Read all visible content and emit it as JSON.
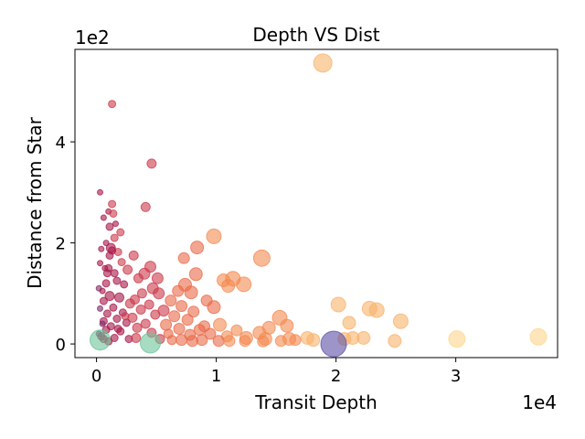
{
  "chart_data": {
    "type": "scatter",
    "title": "Depth VS Dist",
    "xlabel": "Transit Depth",
    "ylabel": "Distance from Star",
    "x_offset_label": "1e4",
    "y_offset_label": "1e2",
    "xlim": [
      -1800,
      38500
    ],
    "ylim": [
      -27,
      583
    ],
    "x_ticks": [
      0,
      10000,
      20000,
      30000
    ],
    "x_tick_labels": [
      "0",
      "1",
      "2",
      "3"
    ],
    "y_ticks": [
      0,
      200,
      400
    ],
    "y_tick_labels": [
      "0",
      "2",
      "4"
    ],
    "grid": false,
    "legend": "none",
    "colormap": [
      "#7d2a6b",
      "#a81848",
      "#cc3a4b",
      "#ea6a48",
      "#f48a50",
      "#f9b26b",
      "#fdd58c",
      "#fee9a6"
    ],
    "special_colors": {
      "green": "#6cc39a",
      "purple": "#5b4fa5"
    },
    "points": [
      {
        "x": 18900,
        "y": 556,
        "s": 10,
        "c": "#f9b26b"
      },
      {
        "x": 1300,
        "y": 475,
        "s": 4,
        "c": "#cc3a4b"
      },
      {
        "x": 4600,
        "y": 357,
        "s": 5,
        "c": "#cc3a4b"
      },
      {
        "x": 300,
        "y": 300,
        "s": 3,
        "c": "#a81848"
      },
      {
        "x": 1300,
        "y": 277,
        "s": 4,
        "c": "#cc3a4b"
      },
      {
        "x": 4100,
        "y": 271,
        "s": 5,
        "c": "#cc3a4b"
      },
      {
        "x": 1000,
        "y": 262,
        "s": 3,
        "c": "#a81848"
      },
      {
        "x": 1400,
        "y": 258,
        "s": 4,
        "c": "#cc3a4b"
      },
      {
        "x": 600,
        "y": 250,
        "s": 3,
        "c": "#a81848"
      },
      {
        "x": 1600,
        "y": 238,
        "s": 3,
        "c": "#a81848"
      },
      {
        "x": 1100,
        "y": 232,
        "s": 4,
        "c": "#a81848"
      },
      {
        "x": 2000,
        "y": 221,
        "s": 4,
        "c": "#cc3a4b"
      },
      {
        "x": 9800,
        "y": 213,
        "s": 8,
        "c": "#f48a50"
      },
      {
        "x": 1500,
        "y": 210,
        "s": 4,
        "c": "#cc3a4b"
      },
      {
        "x": 800,
        "y": 200,
        "s": 3,
        "c": "#a81848"
      },
      {
        "x": 1200,
        "y": 190,
        "s": 5,
        "c": "#a81848"
      },
      {
        "x": 8400,
        "y": 191,
        "s": 7,
        "c": "#ea6a48"
      },
      {
        "x": 1800,
        "y": 182,
        "s": 4,
        "c": "#cc3a4b"
      },
      {
        "x": 3100,
        "y": 175,
        "s": 5,
        "c": "#cc3a4b"
      },
      {
        "x": 7300,
        "y": 170,
        "s": 6,
        "c": "#ea6a48"
      },
      {
        "x": 13800,
        "y": 170,
        "s": 9,
        "c": "#f48a50"
      },
      {
        "x": 400,
        "y": 188,
        "s": 3,
        "c": "#a81848"
      },
      {
        "x": 2100,
        "y": 162,
        "s": 4,
        "c": "#cc3a4b"
      },
      {
        "x": 4500,
        "y": 153,
        "s": 6,
        "c": "#cc3a4b"
      },
      {
        "x": 1000,
        "y": 150,
        "s": 4,
        "c": "#a81848"
      },
      {
        "x": 2600,
        "y": 147,
        "s": 5,
        "c": "#cc3a4b"
      },
      {
        "x": 8300,
        "y": 138,
        "s": 7,
        "c": "#ea6a48"
      },
      {
        "x": 1500,
        "y": 140,
        "s": 4,
        "c": "#a81848"
      },
      {
        "x": 4000,
        "y": 139,
        "s": 6,
        "c": "#cc3a4b"
      },
      {
        "x": 3500,
        "y": 130,
        "s": 5,
        "c": "#cc3a4b"
      },
      {
        "x": 5100,
        "y": 130,
        "s": 6,
        "c": "#cc3a4b"
      },
      {
        "x": 10600,
        "y": 126,
        "s": 7,
        "c": "#f48a50"
      },
      {
        "x": 11400,
        "y": 129,
        "s": 8,
        "c": "#f48a50"
      },
      {
        "x": 12300,
        "y": 118,
        "s": 8,
        "c": "#f48a50"
      },
      {
        "x": 7400,
        "y": 117,
        "s": 7,
        "c": "#ea6a48"
      },
      {
        "x": 11000,
        "y": 115,
        "s": 7,
        "c": "#f48a50"
      },
      {
        "x": 800,
        "y": 120,
        "s": 4,
        "c": "#a81848"
      },
      {
        "x": 2300,
        "y": 118,
        "s": 4,
        "c": "#a81848"
      },
      {
        "x": 4700,
        "y": 110,
        "s": 6,
        "c": "#cc3a4b"
      },
      {
        "x": 6800,
        "y": 105,
        "s": 6,
        "c": "#ea6a48"
      },
      {
        "x": 7900,
        "y": 102,
        "s": 7,
        "c": "#ea6a48"
      },
      {
        "x": 5200,
        "y": 100,
        "s": 6,
        "c": "#cc3a4b"
      },
      {
        "x": 15300,
        "y": 52,
        "s": 8,
        "c": "#f48a50"
      },
      {
        "x": 20200,
        "y": 78,
        "s": 8,
        "c": "#f9b26b"
      },
      {
        "x": 22800,
        "y": 70,
        "s": 8,
        "c": "#f9b26b"
      },
      {
        "x": 23400,
        "y": 67,
        "s": 8,
        "c": "#f9b26b"
      },
      {
        "x": 25400,
        "y": 45,
        "s": 8,
        "c": "#f9b26b"
      },
      {
        "x": 21100,
        "y": 42,
        "s": 7,
        "c": "#f9b26b"
      },
      {
        "x": 1100,
        "y": 95,
        "s": 5,
        "c": "#a81848"
      },
      {
        "x": 1900,
        "y": 92,
        "s": 5,
        "c": "#a81848"
      },
      {
        "x": 3200,
        "y": 88,
        "s": 5,
        "c": "#cc3a4b"
      },
      {
        "x": 6200,
        "y": 86,
        "s": 6,
        "c": "#ea6a48"
      },
      {
        "x": 9200,
        "y": 86,
        "s": 6,
        "c": "#ea6a48"
      },
      {
        "x": 600,
        "y": 85,
        "s": 4,
        "c": "#a81848"
      },
      {
        "x": 2800,
        "y": 80,
        "s": 5,
        "c": "#cc3a4b"
      },
      {
        "x": 4400,
        "y": 78,
        "s": 5,
        "c": "#cc3a4b"
      },
      {
        "x": 7100,
        "y": 75,
        "s": 6,
        "c": "#ea6a48"
      },
      {
        "x": 9800,
        "y": 73,
        "s": 7,
        "c": "#ea6a48"
      },
      {
        "x": 1400,
        "y": 72,
        "s": 4,
        "c": "#a81848"
      },
      {
        "x": 3700,
        "y": 68,
        "s": 5,
        "c": "#cc3a4b"
      },
      {
        "x": 5600,
        "y": 66,
        "s": 6,
        "c": "#cc3a4b"
      },
      {
        "x": 8100,
        "y": 64,
        "s": 6,
        "c": "#ea6a48"
      },
      {
        "x": 2200,
        "y": 62,
        "s": 4,
        "c": "#a81848"
      },
      {
        "x": 900,
        "y": 60,
        "s": 4,
        "c": "#a81848"
      },
      {
        "x": 4900,
        "y": 58,
        "s": 5,
        "c": "#cc3a4b"
      },
      {
        "x": 6500,
        "y": 55,
        "s": 6,
        "c": "#ea6a48"
      },
      {
        "x": 3000,
        "y": 52,
        "s": 5,
        "c": "#cc3a4b"
      },
      {
        "x": 1700,
        "y": 50,
        "s": 4,
        "c": "#a81848"
      },
      {
        "x": 7600,
        "y": 48,
        "s": 6,
        "c": "#ea6a48"
      },
      {
        "x": 10300,
        "y": 38,
        "s": 7,
        "c": "#f48a50"
      },
      {
        "x": 15900,
        "y": 36,
        "s": 7,
        "c": "#f48a50"
      },
      {
        "x": 14400,
        "y": 32,
        "s": 7,
        "c": "#f48a50"
      },
      {
        "x": 600,
        "y": 45,
        "s": 4,
        "c": "#a81848"
      },
      {
        "x": 2500,
        "y": 42,
        "s": 4,
        "c": "#a81848"
      },
      {
        "x": 4100,
        "y": 40,
        "s": 5,
        "c": "#cc3a4b"
      },
      {
        "x": 5800,
        "y": 38,
        "s": 6,
        "c": "#ea6a48"
      },
      {
        "x": 9000,
        "y": 35,
        "s": 6,
        "c": "#ea6a48"
      },
      {
        "x": 1200,
        "y": 35,
        "s": 4,
        "c": "#a81848"
      },
      {
        "x": 3400,
        "y": 32,
        "s": 5,
        "c": "#cc3a4b"
      },
      {
        "x": 6900,
        "y": 30,
        "s": 6,
        "c": "#ea6a48"
      },
      {
        "x": 8600,
        "y": 28,
        "s": 6,
        "c": "#ea6a48"
      },
      {
        "x": 11700,
        "y": 27,
        "s": 6,
        "c": "#f48a50"
      },
      {
        "x": 13600,
        "y": 22,
        "s": 7,
        "c": "#f48a50"
      },
      {
        "x": 800,
        "y": 28,
        "s": 4,
        "c": "#a81848"
      },
      {
        "x": 2000,
        "y": 25,
        "s": 4,
        "c": "#a81848"
      },
      {
        "x": 4600,
        "y": 22,
        "s": 5,
        "c": "#cc3a4b"
      },
      {
        "x": 6000,
        "y": 20,
        "s": 5,
        "c": "#ea6a48"
      },
      {
        "x": 7800,
        "y": 18,
        "s": 6,
        "c": "#ea6a48"
      },
      {
        "x": 9500,
        "y": 20,
        "s": 6,
        "c": "#ea6a48"
      },
      {
        "x": 10900,
        "y": 15,
        "s": 6,
        "c": "#f48a50"
      },
      {
        "x": 12500,
        "y": 12,
        "s": 7,
        "c": "#f48a50"
      },
      {
        "x": 14100,
        "y": 10,
        "s": 7,
        "c": "#f48a50"
      },
      {
        "x": 16100,
        "y": 10,
        "s": 7,
        "c": "#f48a50"
      },
      {
        "x": 17600,
        "y": 12,
        "s": 7,
        "c": "#f9b26b"
      },
      {
        "x": 18100,
        "y": 8,
        "s": 7,
        "c": "#f9b26b"
      },
      {
        "x": 20700,
        "y": 10,
        "s": 7,
        "c": "#f9b26b"
      },
      {
        "x": 21400,
        "y": 12,
        "s": 7,
        "c": "#f9b26b"
      },
      {
        "x": 22300,
        "y": 12,
        "s": 7,
        "c": "#f9b26b"
      },
      {
        "x": 24900,
        "y": 6,
        "s": 7,
        "c": "#f9b26b"
      },
      {
        "x": 30100,
        "y": 10,
        "s": 9,
        "c": "#fdd58c"
      },
      {
        "x": 36900,
        "y": 14,
        "s": 9,
        "c": "#fdd58c"
      },
      {
        "x": 400,
        "y": 15,
        "s": 4,
        "c": "#a81848"
      },
      {
        "x": 1500,
        "y": 12,
        "s": 4,
        "c": "#a81848"
      },
      {
        "x": 2700,
        "y": 10,
        "s": 4,
        "c": "#a81848"
      },
      {
        "x": 3300,
        "y": 12,
        "s": 5,
        "c": "#cc3a4b"
      },
      {
        "x": 5300,
        "y": 10,
        "s": 5,
        "c": "#cc3a4b"
      },
      {
        "x": 6300,
        "y": 8,
        "s": 5,
        "c": "#ea6a48"
      },
      {
        "x": 7100,
        "y": 8,
        "s": 6,
        "c": "#ea6a48"
      },
      {
        "x": 8000,
        "y": 6,
        "s": 6,
        "c": "#ea6a48"
      },
      {
        "x": 8800,
        "y": 8,
        "s": 6,
        "c": "#ea6a48"
      },
      {
        "x": 10200,
        "y": 6,
        "s": 6,
        "c": "#ea6a48"
      },
      {
        "x": 11100,
        "y": 6,
        "s": 6,
        "c": "#f48a50"
      },
      {
        "x": 12400,
        "y": 6,
        "s": 6,
        "c": "#f48a50"
      },
      {
        "x": 13900,
        "y": 5,
        "s": 6,
        "c": "#f48a50"
      },
      {
        "x": 15400,
        "y": 6,
        "s": 6,
        "c": "#f48a50"
      },
      {
        "x": 16600,
        "y": 8,
        "s": 6,
        "c": "#f48a50"
      },
      {
        "x": 200,
        "y": 110,
        "s": 3,
        "c": "#7d2a6b"
      },
      {
        "x": 500,
        "y": 105,
        "s": 3,
        "c": "#a81848"
      },
      {
        "x": 700,
        "y": 150,
        "s": 3,
        "c": "#a81848"
      },
      {
        "x": 300,
        "y": 160,
        "s": 3,
        "c": "#a81848"
      },
      {
        "x": 900,
        "y": 140,
        "s": 4,
        "c": "#a81848"
      },
      {
        "x": 300,
        "y": 70,
        "s": 3,
        "c": "#7d2a6b"
      },
      {
        "x": 500,
        "y": 40,
        "s": 3,
        "c": "#7d2a6b"
      },
      {
        "x": 200,
        "y": 20,
        "s": 3,
        "c": "#7d2a6b"
      },
      {
        "x": 600,
        "y": 10,
        "s": 4,
        "c": "#a81848"
      },
      {
        "x": 1000,
        "y": 5,
        "s": 4,
        "c": "#a81848"
      },
      {
        "x": 1800,
        "y": 30,
        "s": 4,
        "c": "#a81848"
      },
      {
        "x": 2400,
        "y": 55,
        "s": 4,
        "c": "#cc3a4b"
      },
      {
        "x": 1100,
        "y": 175,
        "s": 4,
        "c": "#a81848"
      },
      {
        "x": 1300,
        "y": 185,
        "s": 4,
        "c": "#a81848"
      },
      {
        "x": 1700,
        "y": 125,
        "s": 4,
        "c": "#a81848"
      },
      {
        "x": 3800,
        "y": 100,
        "s": 5,
        "c": "#cc3a4b"
      },
      {
        "x": 300,
        "y": 8,
        "s": 11,
        "c": "#6cc39a"
      },
      {
        "x": 4500,
        "y": 2,
        "s": 11,
        "c": "#6cc39a"
      },
      {
        "x": 19800,
        "y": 0,
        "s": 14,
        "c": "#5b4fa5"
      }
    ]
  }
}
